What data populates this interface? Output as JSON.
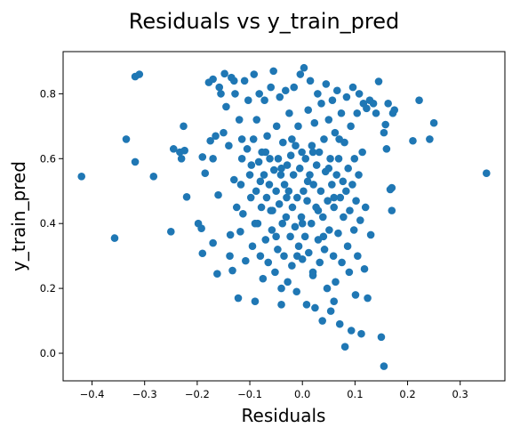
{
  "chart_data": {
    "type": "scatter",
    "title": "Residuals vs y_train_pred",
    "xlabel": "Residuals",
    "ylabel": "y_train_pred",
    "xlim": [
      -0.455,
      0.385
    ],
    "ylim": [
      -0.085,
      0.93
    ],
    "xticks": [
      -0.4,
      -0.3,
      -0.2,
      -0.1,
      0.0,
      0.1,
      0.2,
      0.3
    ],
    "xtick_labels": [
      "−0.4",
      "−0.3",
      "−0.2",
      "−0.1",
      "0.0",
      "0.1",
      "0.2",
      "0.3"
    ],
    "yticks": [
      0.0,
      0.2,
      0.4,
      0.6,
      0.8
    ],
    "ytick_labels": [
      "0.0",
      "0.2",
      "0.4",
      "0.6",
      "0.8"
    ],
    "grid": false,
    "legend": "none",
    "marker_color": "#1f77b4",
    "series": [
      {
        "points": [
          [
            -0.42,
            0.545
          ],
          [
            -0.357,
            0.355
          ],
          [
            -0.335,
            0.66
          ],
          [
            -0.318,
            0.59
          ],
          [
            -0.318,
            0.853
          ],
          [
            -0.31,
            0.86
          ],
          [
            -0.283,
            0.545
          ],
          [
            -0.25,
            0.375
          ],
          [
            -0.245,
            0.63
          ],
          [
            -0.233,
            0.62
          ],
          [
            -0.23,
            0.6
          ],
          [
            -0.226,
            0.7
          ],
          [
            -0.224,
            0.625
          ],
          [
            -0.22,
            0.482
          ],
          [
            -0.198,
            0.4
          ],
          [
            -0.192,
            0.385
          ],
          [
            -0.19,
            0.605
          ],
          [
            -0.19,
            0.308
          ],
          [
            -0.185,
            0.555
          ],
          [
            -0.178,
            0.835
          ],
          [
            -0.175,
            0.655
          ],
          [
            -0.17,
            0.6
          ],
          [
            -0.17,
            0.34
          ],
          [
            -0.17,
            0.845
          ],
          [
            -0.165,
            0.67
          ],
          [
            -0.162,
            0.245
          ],
          [
            -0.16,
            0.488
          ],
          [
            -0.158,
            0.82
          ],
          [
            -0.155,
            0.8
          ],
          [
            -0.15,
            0.68
          ],
          [
            -0.148,
            0.862
          ],
          [
            -0.145,
            0.76
          ],
          [
            -0.14,
            0.64
          ],
          [
            -0.138,
            0.3
          ],
          [
            -0.137,
            0.365
          ],
          [
            -0.135,
            0.85
          ],
          [
            -0.133,
            0.255
          ],
          [
            -0.13,
            0.535
          ],
          [
            -0.13,
            0.84
          ],
          [
            -0.128,
            0.8
          ],
          [
            -0.125,
            0.45
          ],
          [
            -0.122,
            0.17
          ],
          [
            -0.12,
            0.72
          ],
          [
            -0.118,
            0.375
          ],
          [
            -0.117,
            0.52
          ],
          [
            -0.115,
            0.6
          ],
          [
            -0.115,
            0.66
          ],
          [
            -0.113,
            0.43
          ],
          [
            -0.11,
            0.84
          ],
          [
            -0.108,
            0.285
          ],
          [
            -0.105,
            0.63
          ],
          [
            -0.103,
            0.78
          ],
          [
            -0.1,
            0.55
          ],
          [
            -0.098,
            0.48
          ],
          [
            -0.097,
            0.58
          ],
          [
            -0.095,
            0.33
          ],
          [
            -0.093,
            0.66
          ],
          [
            -0.092,
            0.86
          ],
          [
            -0.09,
            0.16
          ],
          [
            -0.088,
            0.5
          ],
          [
            -0.087,
            0.72
          ],
          [
            -0.085,
            0.4
          ],
          [
            -0.083,
            0.59
          ],
          [
            -0.082,
            0.8
          ],
          [
            -0.08,
            0.3
          ],
          [
            -0.078,
            0.45
          ],
          [
            -0.077,
            0.62
          ],
          [
            -0.075,
            0.23
          ],
          [
            -0.073,
            0.55
          ],
          [
            -0.072,
            0.78
          ],
          [
            -0.07,
            0.35
          ],
          [
            -0.068,
            0.48
          ],
          [
            -0.067,
            0.67
          ],
          [
            -0.065,
            0.28
          ],
          [
            -0.063,
            0.52
          ],
          [
            -0.062,
            0.6
          ],
          [
            -0.06,
            0.82
          ],
          [
            -0.058,
            0.38
          ],
          [
            -0.057,
            0.44
          ],
          [
            -0.055,
            0.87
          ],
          [
            -0.054,
            0.565
          ],
          [
            -0.052,
            0.25
          ],
          [
            -0.05,
            0.5
          ],
          [
            -0.049,
            0.7
          ],
          [
            -0.047,
            0.32
          ],
          [
            -0.046,
            0.6
          ],
          [
            -0.044,
            0.46
          ],
          [
            -0.043,
            0.79
          ],
          [
            -0.041,
            0.55
          ],
          [
            -0.04,
            0.15
          ],
          [
            -0.038,
            0.4
          ],
          [
            -0.037,
            0.65
          ],
          [
            -0.035,
            0.3
          ],
          [
            -0.034,
            0.52
          ],
          [
            -0.032,
            0.81
          ],
          [
            -0.031,
            0.42
          ],
          [
            -0.029,
            0.58
          ],
          [
            -0.028,
            0.22
          ],
          [
            -0.026,
            0.5
          ],
          [
            -0.025,
            0.74
          ],
          [
            -0.023,
            0.36
          ],
          [
            -0.022,
            0.61
          ],
          [
            -0.02,
            0.27
          ],
          [
            -0.019,
            0.45
          ],
          [
            -0.017,
            0.55
          ],
          [
            -0.016,
            0.82
          ],
          [
            -0.014,
            0.39
          ],
          [
            -0.013,
            0.64
          ],
          [
            -0.011,
            0.19
          ],
          [
            -0.01,
            0.48
          ],
          [
            -0.008,
            0.7
          ],
          [
            -0.007,
            0.33
          ],
          [
            -0.005,
            0.57
          ],
          [
            -0.004,
            0.86
          ],
          [
            -0.002,
            0.42
          ],
          [
            -0.001,
            0.62
          ],
          [
            0.0,
            0.29
          ],
          [
            0.002,
            0.5
          ],
          [
            0.003,
            0.88
          ],
          [
            0.005,
            0.36
          ],
          [
            0.006,
            0.6
          ],
          [
            0.008,
            0.15
          ],
          [
            0.009,
            0.47
          ],
          [
            0.011,
            0.75
          ],
          [
            0.012,
            0.31
          ],
          [
            0.014,
            0.55
          ],
          [
            0.015,
            0.84
          ],
          [
            0.017,
            0.4
          ],
          [
            0.018,
            0.64
          ],
          [
            0.02,
            0.24
          ],
          [
            0.021,
            0.52
          ],
          [
            0.023,
            0.71
          ],
          [
            0.024,
            0.14
          ],
          [
            0.026,
            0.45
          ],
          [
            0.027,
            0.58
          ],
          [
            0.029,
            0.8
          ],
          [
            0.03,
            0.35
          ],
          [
            0.032,
            0.62
          ],
          [
            0.033,
            0.28
          ],
          [
            0.035,
            0.5
          ],
          [
            0.036,
            0.77
          ],
          [
            0.038,
            0.1
          ],
          [
            0.039,
            0.42
          ],
          [
            0.041,
            0.66
          ],
          [
            0.042,
            0.32
          ],
          [
            0.044,
            0.56
          ],
          [
            0.045,
            0.83
          ],
          [
            0.047,
            0.2
          ],
          [
            0.048,
            0.47
          ],
          [
            0.05,
            0.72
          ],
          [
            0.051,
            0.38
          ],
          [
            0.053,
            0.6
          ],
          [
            0.054,
            0.13
          ],
          [
            0.056,
            0.52
          ],
          [
            0.057,
            0.78
          ],
          [
            0.059,
            0.3
          ],
          [
            0.06,
            0.45
          ],
          [
            0.062,
            0.68
          ],
          [
            0.063,
            0.22
          ],
          [
            0.065,
            0.55
          ],
          [
            0.066,
            0.81
          ],
          [
            0.068,
            0.37
          ],
          [
            0.069,
            0.6
          ],
          [
            0.071,
            0.09
          ],
          [
            0.072,
            0.48
          ],
          [
            0.074,
            0.74
          ],
          [
            0.075,
            0.28
          ],
          [
            0.077,
            0.53
          ],
          [
            0.078,
            0.42
          ],
          [
            0.08,
            0.65
          ],
          [
            0.081,
            0.02
          ],
          [
            0.083,
            0.5
          ],
          [
            0.084,
            0.79
          ],
          [
            0.086,
            0.33
          ],
          [
            0.087,
            0.57
          ],
          [
            0.089,
            0.25
          ],
          [
            0.09,
            0.44
          ],
          [
            0.092,
            0.7
          ],
          [
            0.093,
            0.07
          ],
          [
            0.095,
            0.52
          ],
          [
            0.096,
            0.82
          ],
          [
            0.098,
            0.38
          ],
          [
            0.099,
            0.6
          ],
          [
            0.101,
            0.18
          ],
          [
            0.102,
            0.47
          ],
          [
            0.104,
            0.74
          ],
          [
            0.105,
            0.3
          ],
          [
            0.107,
            0.55
          ],
          [
            0.108,
            0.8
          ],
          [
            0.11,
            0.41
          ],
          [
            0.112,
            0.06
          ],
          [
            0.114,
            0.62
          ],
          [
            0.116,
            0.77
          ],
          [
            0.118,
            0.26
          ],
          [
            0.12,
            0.45
          ],
          [
            0.122,
            0.755
          ],
          [
            0.124,
            0.17
          ],
          [
            0.128,
            0.78
          ],
          [
            0.13,
            0.365
          ],
          [
            0.135,
            0.77
          ],
          [
            0.14,
            0.74
          ],
          [
            0.145,
            0.838
          ],
          [
            0.15,
            0.05
          ],
          [
            0.155,
            -0.04
          ],
          [
            0.155,
            0.68
          ],
          [
            0.158,
            0.705
          ],
          [
            0.16,
            0.63
          ],
          [
            0.163,
            0.77
          ],
          [
            0.167,
            0.505
          ],
          [
            0.17,
            0.51
          ],
          [
            0.17,
            0.44
          ],
          [
            0.172,
            0.74
          ],
          [
            0.175,
            0.75
          ],
          [
            0.21,
            0.655
          ],
          [
            0.222,
            0.78
          ],
          [
            0.242,
            0.66
          ],
          [
            0.25,
            0.71
          ],
          [
            0.35,
            0.555
          ],
          [
            -0.09,
            0.4
          ],
          [
            -0.06,
            0.44
          ],
          [
            -0.03,
            0.48
          ],
          [
            0.0,
            0.4
          ],
          [
            0.03,
            0.44
          ],
          [
            0.06,
            0.48
          ],
          [
            -0.08,
            0.53
          ],
          [
            -0.04,
            0.57
          ],
          [
            0.01,
            0.53
          ],
          [
            0.05,
            0.57
          ],
          [
            -0.07,
            0.62
          ],
          [
            -0.02,
            0.66
          ],
          [
            0.02,
            0.62
          ],
          [
            0.07,
            0.66
          ],
          [
            -0.05,
            0.36
          ],
          [
            0.04,
            0.36
          ],
          [
            -0.01,
            0.3
          ],
          [
            0.02,
            0.25
          ],
          [
            -0.04,
            0.2
          ],
          [
            0.06,
            0.16
          ]
        ]
      }
    ]
  }
}
